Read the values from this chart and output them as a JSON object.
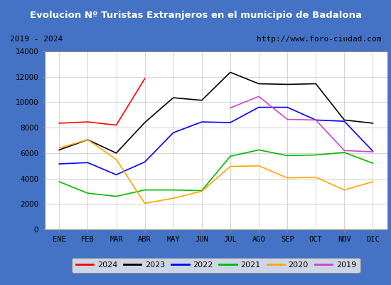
{
  "title": "Evolucion Nº Turistas Extranjeros en el municipio de Badalona",
  "subtitle_left": "2019 - 2024",
  "subtitle_right": "http://www.foro-ciudad.com",
  "title_bg_color": "#4472c4",
  "title_text_color": "#ffffff",
  "subtitle_bg_color": "#e8e8e8",
  "plot_bg_color": "#ffffff",
  "fig_bg_color": "#4472c4",
  "months": [
    "ENE",
    "FEB",
    "MAR",
    "ABR",
    "MAY",
    "JUN",
    "JUL",
    "AGO",
    "SEP",
    "OCT",
    "NOV",
    "DIC"
  ],
  "series": {
    "2024": {
      "color": "#ff0000",
      "data": [
        8350,
        8450,
        8200,
        11850,
        null,
        null,
        null,
        null,
        null,
        null,
        null,
        null
      ]
    },
    "2023": {
      "color": "#000000",
      "data": [
        6250,
        7050,
        6000,
        8400,
        10350,
        10150,
        12350,
        11450,
        11400,
        11450,
        8600,
        8350
      ]
    },
    "2022": {
      "color": "#0000ff",
      "data": [
        5150,
        5250,
        4300,
        5300,
        7600,
        8450,
        8400,
        9600,
        9600,
        8600,
        8500,
        6150
      ]
    },
    "2021": {
      "color": "#00bb00",
      "data": [
        3750,
        2850,
        2600,
        3100,
        3100,
        3050,
        5750,
        6250,
        5800,
        5850,
        6050,
        5200
      ]
    },
    "2020": {
      "color": "#ffa500",
      "data": [
        6400,
        7050,
        5500,
        2050,
        2450,
        3000,
        4950,
        5000,
        4050,
        4100,
        3100,
        3750
      ]
    },
    "2019": {
      "color": "#cc44cc",
      "data": [
        null,
        null,
        null,
        null,
        null,
        null,
        9550,
        10450,
        8650,
        8600,
        6200,
        6100
      ]
    }
  },
  "ylim": [
    0,
    14000
  ],
  "yticks": [
    0,
    2000,
    4000,
    6000,
    8000,
    10000,
    12000,
    14000
  ],
  "legend_order": [
    "2024",
    "2023",
    "2022",
    "2021",
    "2020",
    "2019"
  ],
  "grid_color": "#cccccc",
  "tick_label_fontsize": 7.5,
  "legend_fontsize": 8
}
